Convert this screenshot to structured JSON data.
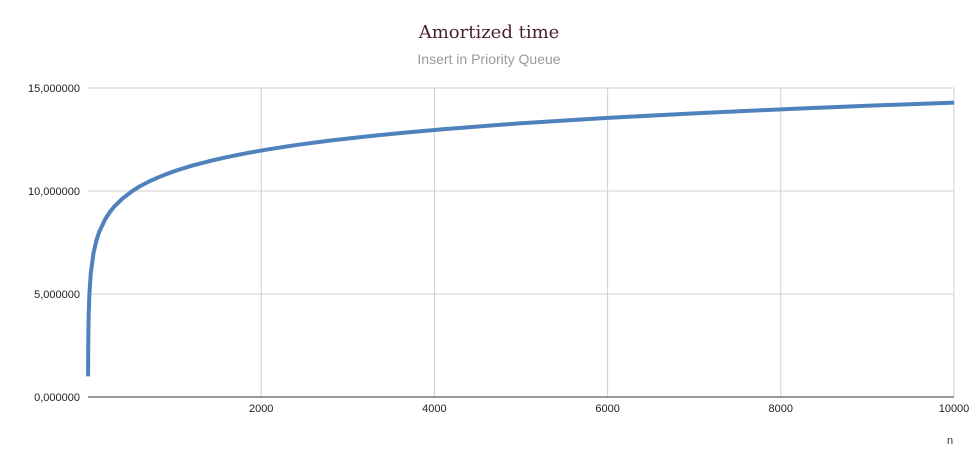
{
  "chart_data": {
    "type": "line",
    "title": "Amortized time",
    "subtitle": "Insert in Priority Queue",
    "xlabel": "n",
    "ylabel": "",
    "xlim": [
      0,
      10000
    ],
    "ylim": [
      0,
      15
    ],
    "x_ticks": [
      2000,
      4000,
      6000,
      8000,
      10000
    ],
    "x_tick_labels": [
      "2000",
      "4000",
      "6000",
      "8000",
      "10000"
    ],
    "y_ticks": [
      0,
      5,
      10,
      15
    ],
    "y_tick_labels": [
      "0,000000",
      "5,000000",
      "10,000000",
      "15,000000"
    ],
    "grid": true,
    "legend": "none",
    "colors": {
      "series": "#4f81bd",
      "grid": "#d0d0d0",
      "axis": "#333333"
    },
    "series": [
      {
        "x": [
          1,
          2,
          4,
          8,
          16,
          32,
          64,
          100,
          128,
          200,
          256,
          300,
          400,
          512,
          600,
          700,
          800,
          900,
          1024,
          1200,
          1400,
          1600,
          1800,
          2048,
          2400,
          2800,
          3200,
          3600,
          4096,
          5000,
          6000,
          7000,
          8192,
          9000,
          10000
        ],
        "values": [
          1.0,
          2.0,
          3.0,
          4.0,
          5.0,
          6.0,
          7.0,
          7.64,
          8.0,
          8.64,
          9.0,
          9.23,
          9.64,
          10.0,
          10.23,
          10.45,
          10.64,
          10.81,
          11.0,
          11.23,
          11.45,
          11.64,
          11.81,
          12.0,
          12.23,
          12.45,
          12.64,
          12.81,
          13.0,
          13.29,
          13.55,
          13.77,
          14.0,
          14.14,
          14.29
        ]
      }
    ]
  }
}
